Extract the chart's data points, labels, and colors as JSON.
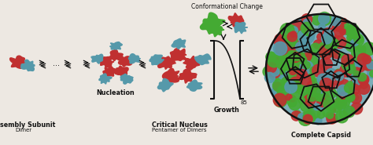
{
  "bg_color": "#ede8e2",
  "title_conformational": "Conformational Change",
  "label_assembly": "Assembly Subunit",
  "label_dimer": "Dimer",
  "label_nucleation": "Nucleation",
  "label_critical": "Critical Nucleus",
  "label_pentamer": "Pentamer of Dimers",
  "label_growth": "Growth",
  "label_complete": "Complete Capsid",
  "label_85": "85",
  "red_color": "#c03030",
  "teal_color": "#5599aa",
  "green_color": "#44aa33",
  "white": "#ffffff",
  "black": "#111111",
  "text_color": "#111111",
  "figw": 4.74,
  "figh": 1.85,
  "dpi": 100
}
